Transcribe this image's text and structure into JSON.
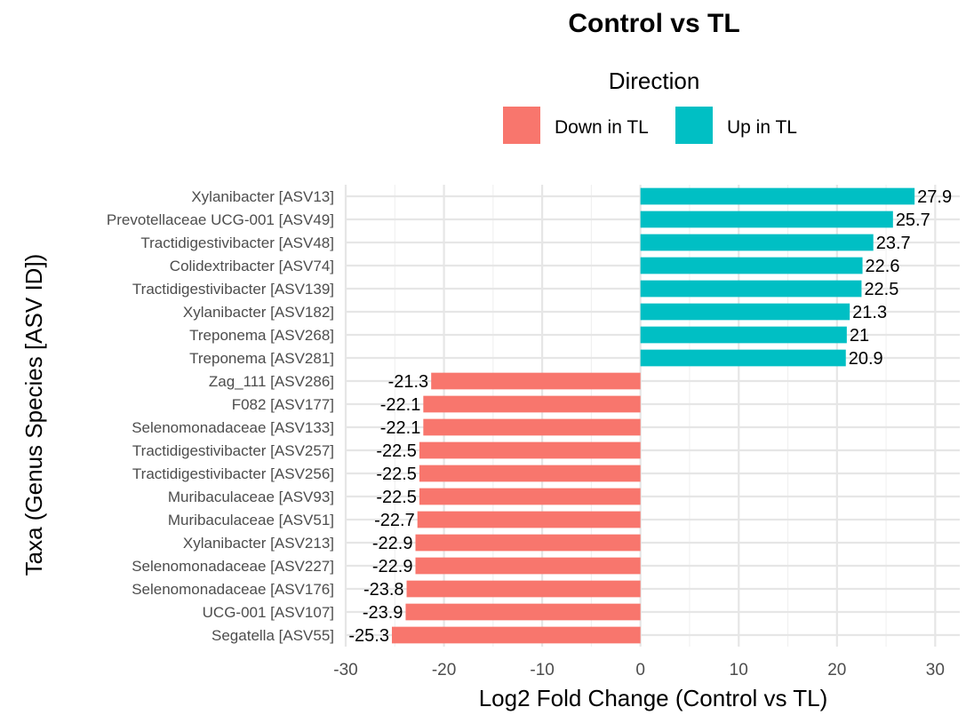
{
  "chart_data": {
    "type": "bar",
    "orientation": "horizontal",
    "title": "Control vs TL",
    "xlabel": "Log2 Fold Change (Control vs TL)",
    "ylabel": "Taxa (Genus Species [ASV ID])",
    "legend": {
      "title": "Direction",
      "placement": "top",
      "entries": [
        {
          "label": "Down in TL",
          "color": "#F8766D"
        },
        {
          "label": "Up in TL",
          "color": "#00BFC4"
        }
      ]
    },
    "xlim": [
      -30,
      32.5
    ],
    "xticks": [
      -30,
      -20,
      -10,
      0,
      10,
      20,
      30
    ],
    "xtick_labels": [
      "-30",
      "-20",
      "-10",
      "0",
      "10",
      "20",
      "30"
    ],
    "grid": true,
    "categories": [
      "Xylanibacter  [ASV13]",
      "Prevotellaceae UCG-001  [ASV49]",
      "Tractidigestivibacter  [ASV48]",
      "Colidextribacter  [ASV74]",
      "Tractidigestivibacter  [ASV139]",
      "Xylanibacter  [ASV182]",
      "Treponema  [ASV268]",
      "Treponema  [ASV281]",
      "Zag_111  [ASV286]",
      "F082  [ASV177]",
      "Selenomonadaceae  [ASV133]",
      "Tractidigestivibacter  [ASV257]",
      "Tractidigestivibacter  [ASV256]",
      "Muribaculaceae  [ASV93]",
      "Muribaculaceae  [ASV51]",
      "Xylanibacter  [ASV213]",
      "Selenomonadaceae  [ASV227]",
      "Selenomonadaceae  [ASV176]",
      "UCG-001  [ASV107]",
      "Segatella  [ASV55]"
    ],
    "values": [
      27.9,
      25.7,
      23.7,
      22.6,
      22.5,
      21.3,
      21.0,
      20.9,
      -21.3,
      -22.1,
      -22.1,
      -22.5,
      -22.5,
      -22.5,
      -22.7,
      -22.9,
      -22.9,
      -23.8,
      -23.9,
      -25.3
    ],
    "value_labels": [
      "27.9",
      "25.7",
      "23.7",
      "22.6",
      "22.5",
      "21.3",
      "21",
      "20.9",
      "-21.3",
      "-22.1",
      "-22.1",
      "-22.5",
      "-22.5",
      "-22.5",
      "-22.7",
      "-22.9",
      "-22.9",
      "-23.8",
      "-23.9",
      "-25.3"
    ],
    "colors": {
      "down": "#F8766D",
      "up": "#00BFC4"
    }
  }
}
